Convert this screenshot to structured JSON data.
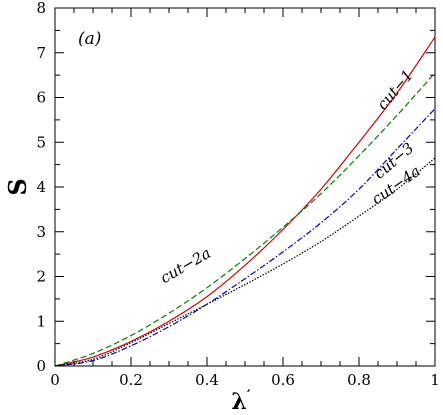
{
  "chart_data": {
    "type": "line",
    "panel_label": "(a)",
    "xlabel": "λ",
    "xlabel_prime": "′",
    "ylabel": "S",
    "xlim": [
      0,
      1
    ],
    "ylim": [
      0,
      8
    ],
    "xticks": [
      0,
      0.2,
      0.4,
      0.6,
      0.8,
      1
    ],
    "xtick_labels": [
      "0",
      "0.2",
      "0.4",
      "0.6",
      "0.8",
      "1"
    ],
    "yticks": [
      0,
      1,
      2,
      3,
      4,
      5,
      6,
      7,
      8
    ],
    "ytick_labels": [
      "0",
      "1",
      "2",
      "3",
      "4",
      "5",
      "6",
      "7",
      "8"
    ],
    "x": [
      0,
      0.1,
      0.2,
      0.3,
      0.4,
      0.5,
      0.6,
      0.7,
      0.8,
      0.9,
      1.0
    ],
    "series": [
      {
        "name": "cut−1",
        "color": "#e00000",
        "dash": "solid",
        "values": [
          0,
          0.2,
          0.55,
          1.0,
          1.55,
          2.25,
          3.05,
          3.95,
          5.0,
          6.1,
          7.35
        ]
      },
      {
        "name": "cut−2a",
        "color": "#008000",
        "dash": "dashed",
        "values": [
          0,
          0.28,
          0.68,
          1.18,
          1.75,
          2.4,
          3.1,
          3.85,
          4.7,
          5.6,
          6.55
        ]
      },
      {
        "name": "cut−3",
        "color": "#0000cc",
        "dash": "dashdot",
        "values": [
          0,
          0.12,
          0.45,
          0.88,
          1.38,
          1.95,
          2.55,
          3.2,
          3.95,
          4.85,
          5.75
        ]
      },
      {
        "name": "cut−4a",
        "color": "#000000",
        "dash": "dotted",
        "values": [
          0,
          0.15,
          0.52,
          0.95,
          1.38,
          1.82,
          2.28,
          2.78,
          3.35,
          3.95,
          4.65
        ]
      }
    ],
    "annotations": [
      {
        "text": "cut−1",
        "x": 0.905,
        "y": 6.1,
        "angle": -50
      },
      {
        "text": "cut−2a",
        "x": 0.35,
        "y": 2.15,
        "angle": -30
      },
      {
        "text": "cut−3",
        "x": 0.9,
        "y": 4.5,
        "angle": -40
      },
      {
        "text": "cut−4a",
        "x": 0.905,
        "y": 3.95,
        "angle": -35
      }
    ],
    "grid": false,
    "legend": "none"
  }
}
